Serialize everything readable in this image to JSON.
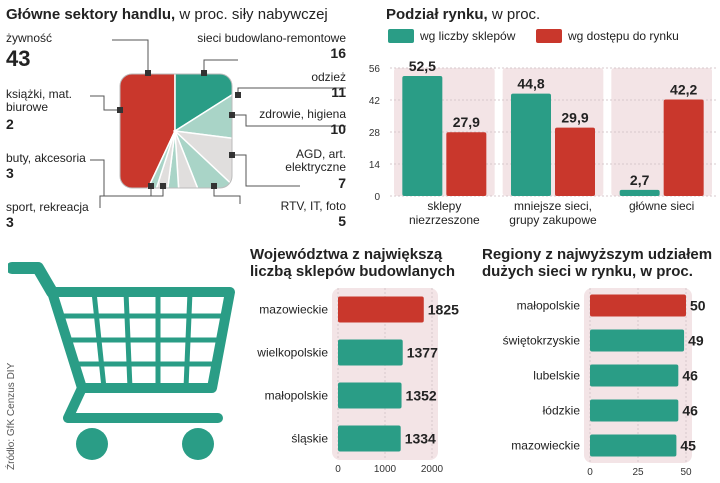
{
  "source": "Źródło: GfK Cenzus DIY",
  "colors": {
    "teal": "#2a9d86",
    "red": "#c9372c",
    "light_teal": "#a9d4c7",
    "light_gray": "#e0dedd",
    "pink_bg": "#f3e4e6",
    "cart": "#2a9d86"
  },
  "chart_data": [
    {
      "type": "pie",
      "title": "Główne sektory handlu,",
      "subtitle": "w proc. siły nabywczej",
      "slices": [
        {
          "label": "żywność",
          "value": 43
        },
        {
          "label": "sieci budowlano-remontowe",
          "value": 16
        },
        {
          "label": "odzież",
          "value": 11
        },
        {
          "label": "zdrowie, higiena",
          "value": 10
        },
        {
          "label": "AGD, art. elektryczne",
          "value": 7
        },
        {
          "label": "RTV, IT, foto",
          "value": 5
        },
        {
          "label": "sport, rekreacja",
          "value": 3
        },
        {
          "label": "buty, akcesoria",
          "value": 3
        },
        {
          "label": "książki, mat. biurowe",
          "value": 2
        }
      ]
    },
    {
      "type": "bar",
      "title": "Podział rynku,",
      "subtitle": "w proc.",
      "categories": [
        "sklepy niezrzeszone",
        "mniejsze sieci, grupy zakupowe",
        "główne sieci"
      ],
      "series": [
        {
          "name": "wg liczby sklepów",
          "values": [
            52.5,
            44.8,
            2.7
          ]
        },
        {
          "name": "wg dostępu do rynku",
          "values": [
            27.9,
            29.9,
            42.2
          ]
        }
      ],
      "value_labels": [
        [
          "52,5",
          "27,9"
        ],
        [
          "44,8",
          "29,9"
        ],
        [
          "2,7",
          "42,2"
        ]
      ],
      "ylim": [
        0,
        56
      ],
      "yticks": [
        0,
        14,
        28,
        42,
        56
      ],
      "legend": "top"
    },
    {
      "type": "bar",
      "orientation": "horizontal",
      "title": "Województwa z największą liczbą sklepów budowlanych",
      "categories": [
        "mazowieckie",
        "wielkopolskie",
        "małopolskie",
        "śląskie"
      ],
      "values": [
        1825,
        1377,
        1352,
        1334
      ],
      "xlim": [
        0,
        2000
      ],
      "xticks": [
        0,
        1000,
        2000
      ]
    },
    {
      "type": "bar",
      "orientation": "horizontal",
      "title": "Regiony z najwyższym udziałem dużych sieci w rynku, w proc.",
      "categories": [
        "małopolskie",
        "świętokrzyskie",
        "lubelskie",
        "łódzkie",
        "mazowieckie"
      ],
      "values": [
        50,
        49,
        46,
        46,
        45
      ],
      "xlim": [
        0,
        50
      ],
      "xticks": [
        0,
        25,
        50
      ]
    }
  ]
}
